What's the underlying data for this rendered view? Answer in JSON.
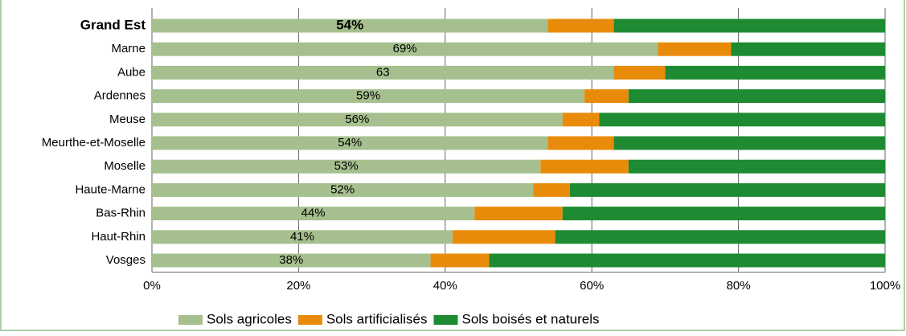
{
  "chart_data": {
    "type": "stacked-barh",
    "categories": [
      "Grand Est",
      "Marne",
      "Aube",
      "Ardennes",
      "Meuse",
      "Meurthe-et-Moselle",
      "Moselle",
      "Haute-Marne",
      "Bas-Rhin",
      "Haut-Rhin",
      "Vosges"
    ],
    "series": [
      {
        "name": "Sols agricoles",
        "color": "#a5c08e",
        "values": [
          54,
          69,
          63,
          59,
          56,
          54,
          53,
          52,
          44,
          41,
          38
        ],
        "value_labels": [
          "54%",
          "69%",
          "63",
          "59%",
          "56%",
          "54%",
          "53%",
          "52%",
          "44%",
          "41%",
          "38%"
        ]
      },
      {
        "name": "Sols artificialisés",
        "color": "#e98b0a",
        "values": [
          9,
          10,
          7,
          6,
          5,
          9,
          12,
          5,
          12,
          14,
          8
        ]
      },
      {
        "name": "Sols boisés et naturels",
        "color": "#1e8b33",
        "values": [
          37,
          21,
          30,
          35,
          39,
          37,
          35,
          43,
          44,
          45,
          54
        ]
      }
    ],
    "xlim": [
      0,
      100
    ],
    "xticks": [
      {
        "value": 0,
        "label": "0%"
      },
      {
        "value": 20,
        "label": "20%"
      },
      {
        "value": 40,
        "label": "40%"
      },
      {
        "value": 60,
        "label": "60%"
      },
      {
        "value": 80,
        "label": "80%"
      },
      {
        "value": 100,
        "label": "100%"
      }
    ],
    "grid": true
  }
}
